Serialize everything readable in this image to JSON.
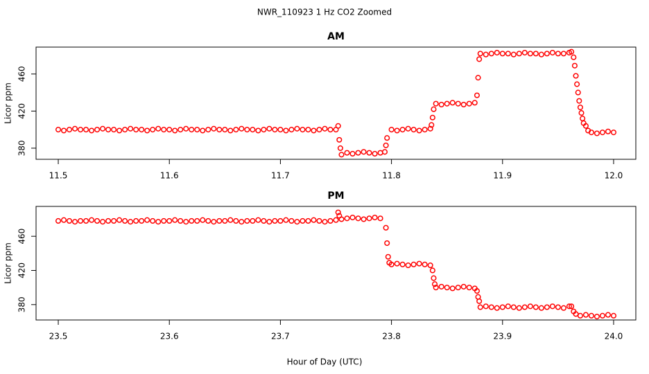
{
  "title": "NWR_110923  1 Hz CO2 Zoomed",
  "x_label": "Hour of Day (UTC)",
  "chart_data": [
    {
      "type": "scatter",
      "title": "AM",
      "y_label": "Licor ppm",
      "xlim": [
        11.48,
        12.02
      ],
      "ylim": [
        368,
        489
      ],
      "xticks": [
        11.5,
        11.6,
        11.7,
        11.8,
        11.9,
        {
          "value": 12,
          "label": "12.0"
        }
      ],
      "yticks": [
        380,
        420,
        460
      ],
      "series": [
        {
          "color": "#ff0000",
          "x": [
            11.5,
            11.505,
            11.51,
            11.515,
            11.52,
            11.525,
            11.53,
            11.535,
            11.54,
            11.545,
            11.55,
            11.555,
            11.56,
            11.565,
            11.57,
            11.575,
            11.58,
            11.585,
            11.59,
            11.595,
            11.6,
            11.605,
            11.61,
            11.615,
            11.62,
            11.625,
            11.63,
            11.635,
            11.64,
            11.645,
            11.65,
            11.655,
            11.66,
            11.665,
            11.67,
            11.675,
            11.68,
            11.685,
            11.69,
            11.695,
            11.7,
            11.705,
            11.71,
            11.715,
            11.72,
            11.725,
            11.73,
            11.735,
            11.74,
            11.745,
            11.75,
            11.752,
            11.753,
            11.754,
            11.755,
            11.76,
            11.765,
            11.77,
            11.775,
            11.78,
            11.785,
            11.79,
            11.794,
            11.795,
            11.796,
            11.8,
            11.805,
            11.81,
            11.815,
            11.82,
            11.825,
            11.83,
            11.835,
            11.836,
            11.837,
            11.838,
            11.84,
            11.845,
            11.85,
            11.855,
            11.86,
            11.865,
            11.87,
            11.875,
            11.877,
            11.878,
            11.879,
            11.88,
            11.885,
            11.89,
            11.895,
            11.9,
            11.905,
            11.91,
            11.915,
            11.92,
            11.925,
            11.93,
            11.935,
            11.94,
            11.945,
            11.95,
            11.955,
            11.96,
            11.962,
            11.964,
            11.965,
            11.966,
            11.967,
            11.968,
            11.969,
            11.97,
            11.971,
            11.972,
            11.973,
            11.975,
            11.977,
            11.98,
            11.985,
            11.99,
            11.995,
            12.0
          ],
          "values": [
            400,
            399,
            400,
            401,
            400,
            400,
            399,
            400,
            401,
            400,
            400,
            399,
            400,
            401,
            400,
            400,
            399,
            400,
            401,
            400,
            400,
            399,
            400,
            401,
            400,
            400,
            399,
            400,
            401,
            400,
            400,
            399,
            400,
            401,
            400,
            400,
            399,
            400,
            401,
            400,
            400,
            399,
            400,
            401,
            400,
            400,
            399,
            400,
            401,
            400,
            400,
            404,
            389,
            380,
            373,
            375,
            374,
            375,
            376,
            375,
            374,
            375,
            376,
            383,
            391,
            400,
            399,
            400,
            401,
            400,
            399,
            400,
            401,
            405,
            413,
            422,
            428,
            427,
            428,
            429,
            428,
            427,
            428,
            429,
            437,
            456,
            476,
            482,
            481,
            482,
            483,
            482,
            482,
            481,
            482,
            483,
            482,
            482,
            481,
            482,
            483,
            482,
            482,
            483,
            484,
            478,
            469,
            458,
            449,
            440,
            431,
            424,
            418,
            412,
            407,
            404,
            399,
            397,
            396,
            397,
            398,
            397
          ]
        }
      ]
    },
    {
      "type": "scatter",
      "title": "PM",
      "y_label": "Licor ppm",
      "xlim": [
        23.48,
        24.02
      ],
      "ylim": [
        362,
        495
      ],
      "xticks": [
        23.5,
        23.6,
        23.7,
        23.8,
        23.9,
        {
          "value": 24,
          "label": "24.0"
        }
      ],
      "yticks": [
        380,
        420,
        460
      ],
      "series": [
        {
          "color": "#ff0000",
          "x": [
            23.5,
            23.505,
            23.51,
            23.515,
            23.52,
            23.525,
            23.53,
            23.535,
            23.54,
            23.545,
            23.55,
            23.555,
            23.56,
            23.565,
            23.57,
            23.575,
            23.58,
            23.585,
            23.59,
            23.595,
            23.6,
            23.605,
            23.61,
            23.615,
            23.62,
            23.625,
            23.63,
            23.635,
            23.64,
            23.645,
            23.65,
            23.655,
            23.66,
            23.665,
            23.67,
            23.675,
            23.68,
            23.685,
            23.69,
            23.695,
            23.7,
            23.705,
            23.71,
            23.715,
            23.72,
            23.725,
            23.73,
            23.735,
            23.74,
            23.745,
            23.75,
            23.752,
            23.753,
            23.755,
            23.76,
            23.765,
            23.77,
            23.775,
            23.78,
            23.785,
            23.79,
            23.795,
            23.796,
            23.797,
            23.798,
            23.8,
            23.805,
            23.81,
            23.815,
            23.82,
            23.825,
            23.83,
            23.835,
            23.837,
            23.838,
            23.839,
            23.84,
            23.845,
            23.85,
            23.855,
            23.86,
            23.865,
            23.87,
            23.875,
            23.877,
            23.878,
            23.879,
            23.88,
            23.885,
            23.89,
            23.895,
            23.9,
            23.905,
            23.91,
            23.915,
            23.92,
            23.925,
            23.93,
            23.935,
            23.94,
            23.945,
            23.95,
            23.955,
            23.96,
            23.962,
            23.964,
            23.966,
            23.97,
            23.975,
            23.98,
            23.985,
            23.99,
            23.995,
            24.0
          ],
          "values": [
            478,
            479,
            478,
            477,
            478,
            478,
            479,
            478,
            477,
            478,
            478,
            479,
            478,
            477,
            478,
            478,
            479,
            478,
            477,
            478,
            478,
            479,
            478,
            477,
            478,
            478,
            479,
            478,
            477,
            478,
            478,
            479,
            478,
            477,
            478,
            478,
            479,
            478,
            477,
            478,
            478,
            479,
            478,
            477,
            478,
            478,
            479,
            478,
            477,
            478,
            479,
            488,
            484,
            480,
            481,
            482,
            481,
            480,
            481,
            482,
            481,
            470,
            452,
            436,
            429,
            427,
            428,
            427,
            426,
            427,
            428,
            427,
            426,
            420,
            411,
            404,
            400,
            401,
            400,
            399,
            400,
            401,
            400,
            399,
            396,
            389,
            384,
            377,
            378,
            377,
            376,
            377,
            378,
            377,
            376,
            377,
            378,
            377,
            376,
            377,
            378,
            377,
            376,
            378,
            378,
            372,
            369,
            367,
            368,
            367,
            366,
            367,
            368,
            367
          ]
        }
      ]
    }
  ]
}
